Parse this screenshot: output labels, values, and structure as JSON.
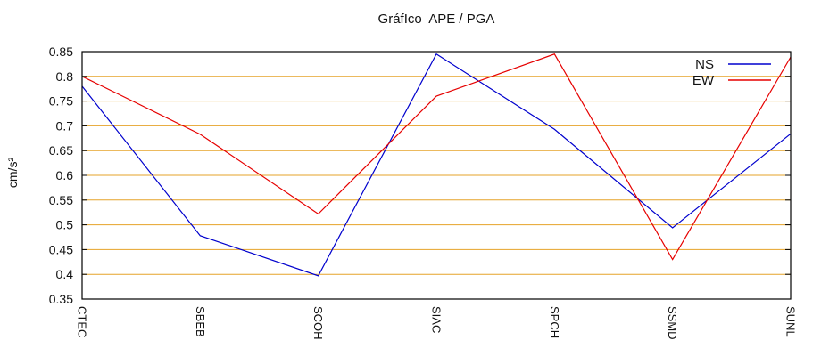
{
  "chart_data": {
    "type": "line",
    "title": "GráfIco  APE / PGA",
    "ylabel": "cm/s²",
    "xlabel": "",
    "categories": [
      "CTEC",
      "SBEB",
      "SCOH",
      "SIAC",
      "SPCH",
      "SSMD",
      "SUNL"
    ],
    "series": [
      {
        "name": "NS",
        "color": "#0000cd",
        "values": [
          0.78,
          0.478,
          0.397,
          0.845,
          0.693,
          0.494,
          0.684
        ]
      },
      {
        "name": "EW",
        "color": "#e60000",
        "values": [
          0.8,
          0.683,
          0.522,
          0.76,
          0.845,
          0.43,
          0.839
        ]
      }
    ],
    "ylim": [
      0.35,
      0.85
    ],
    "yticks": [
      0.35,
      0.4,
      0.45,
      0.5,
      0.55,
      0.6,
      0.65,
      0.7,
      0.75,
      0.8,
      0.85
    ],
    "ytick_labels": [
      "0.35",
      "0.4",
      "0.45",
      "0.5",
      "0.55",
      "0.6",
      "0.65",
      "0.7",
      "0.75",
      "0.8",
      "0.85"
    ],
    "grid": {
      "show": true,
      "color": "#e6a328",
      "direction": "horizontal"
    },
    "legend": {
      "position": "top-right-inside",
      "entries": [
        "NS",
        "EW"
      ]
    },
    "border_color": "#000000",
    "text_color": "#111111",
    "x_tick_label_rotation_deg": 90
  }
}
